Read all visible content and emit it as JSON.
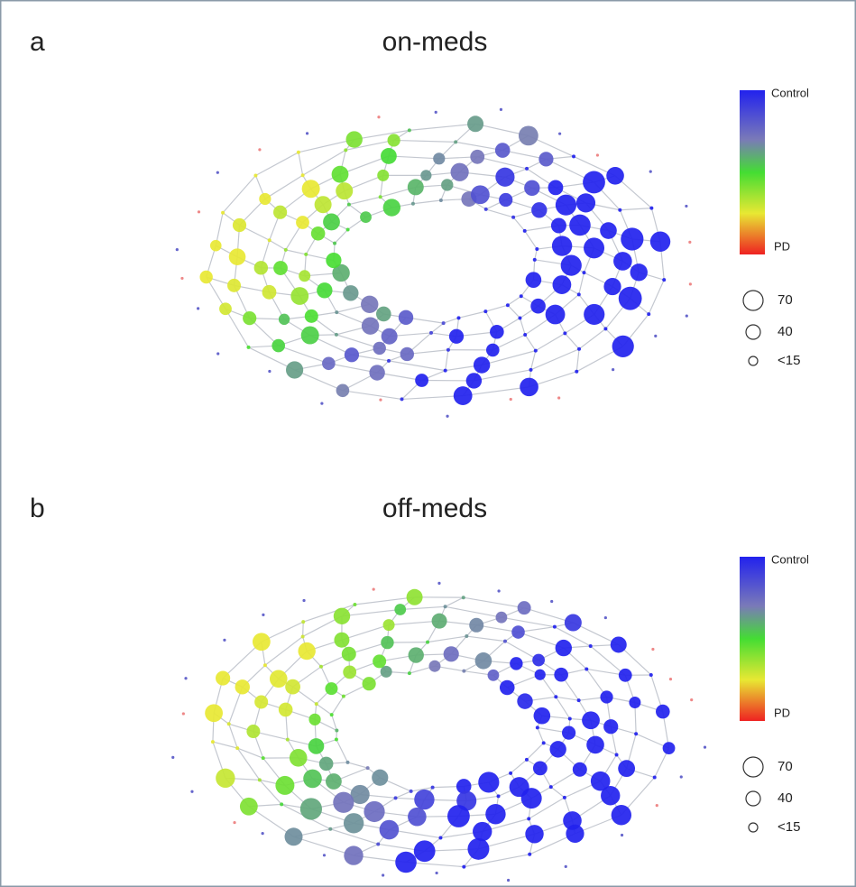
{
  "panels": [
    {
      "label": "a",
      "title": "on-meds",
      "colorbar": {
        "top": "Control",
        "bottom": "PD"
      },
      "size_legend": [
        "70",
        "40",
        "<15"
      ]
    },
    {
      "label": "b",
      "title": "off-meds",
      "colorbar": {
        "top": "Control",
        "bottom": "PD"
      },
      "size_legend": [
        "70",
        "40",
        "<15"
      ]
    }
  ]
}
